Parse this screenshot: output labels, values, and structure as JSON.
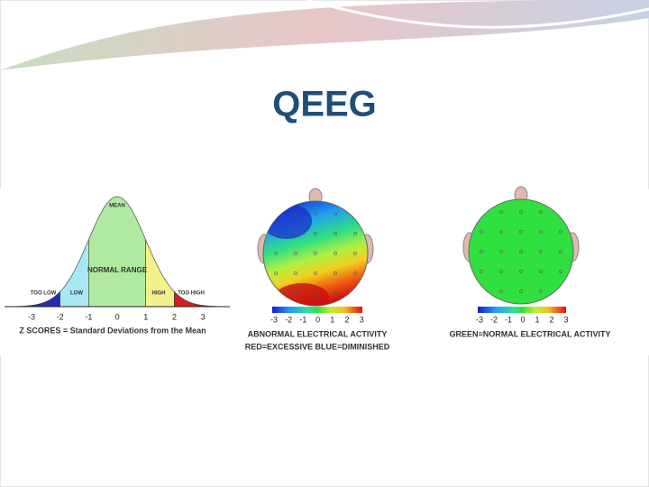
{
  "title": "QEEG",
  "bell_curve": {
    "mean_label": "MEAN",
    "normal_range_label": "NORMAL RANGE",
    "region_labels": [
      "TOO LOW",
      "LOW",
      "HIGH",
      "TOO HIGH"
    ],
    "ticks": [
      "-3",
      "-2",
      "-1",
      "0",
      "1",
      "2",
      "3"
    ],
    "caption": "Z SCORES = Standard Deviations from the Mean"
  },
  "abnormal_map": {
    "scale_ticks": [
      "-3",
      "-2",
      "-1",
      "0",
      "1",
      "2",
      "3"
    ],
    "caption": [
      "ABNORMAL ELECTRICAL ACTIVITY",
      "RED=EXCESSIVE  BLUE=DIMINISHED"
    ]
  },
  "normal_map": {
    "scale_ticks": [
      "-3",
      "-2",
      "-1",
      "0",
      "1",
      "2",
      "3"
    ],
    "caption": "GREEN=NORMAL ELECTRICAL ACTIVITY"
  }
}
